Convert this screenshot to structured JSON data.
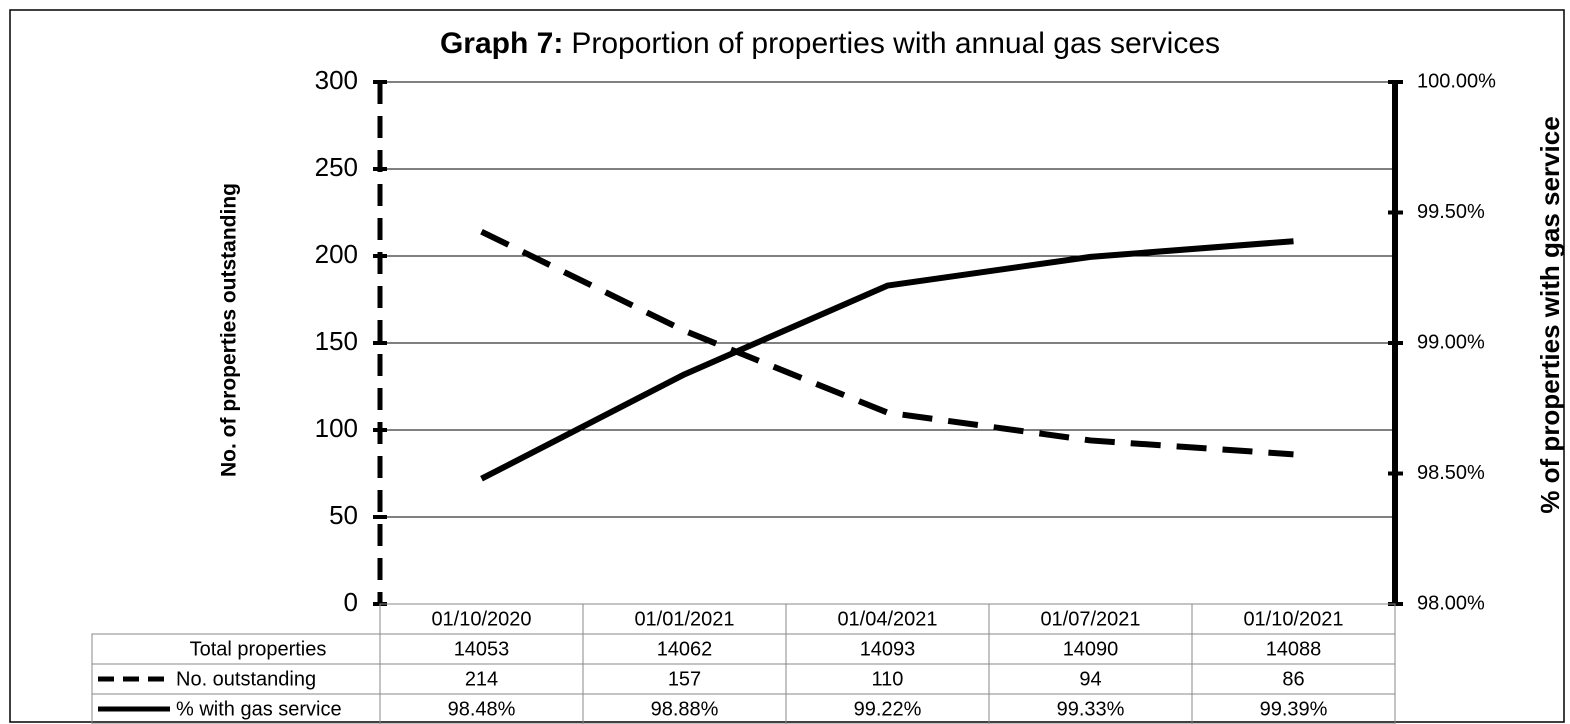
{
  "chart_data": {
    "type": "line",
    "title_label": "Graph 7:",
    "title": "Proportion of properties with annual gas services",
    "y_label": "No. of properties outstanding",
    "y2_label": "% of properties with gas service",
    "categories": [
      "01/10/2020",
      "01/01/2021",
      "01/04/2021",
      "01/07/2021",
      "01/10/2021"
    ],
    "total_properties": {
      "name": "Total properties",
      "values": [
        14053,
        14062,
        14093,
        14090,
        14088
      ]
    },
    "series": [
      {
        "name": "No. outstanding",
        "color": "#000000",
        "dash": true,
        "values": [
          214,
          157,
          110,
          94,
          86
        ]
      },
      {
        "name": "% with gas service",
        "color": "#000000",
        "dash": false,
        "axis": "y2",
        "values": [
          98.48,
          98.88,
          99.22,
          99.33,
          99.39
        ],
        "value_labels": [
          "98.48%",
          "98.88%",
          "99.22%",
          "99.33%",
          "99.39%"
        ]
      }
    ],
    "ylim": [
      0,
      300
    ],
    "yticks": [
      0,
      50,
      100,
      150,
      200,
      250,
      300
    ],
    "y2lim": [
      98,
      100
    ],
    "y2ticks": [
      {
        "value": 98,
        "label": "98.00%"
      },
      {
        "value": 98.5,
        "label": "98.50%"
      },
      {
        "value": 99,
        "label": "99.00%"
      },
      {
        "value": 99.5,
        "label": "99.50%"
      },
      {
        "value": 100,
        "label": "100.00%"
      }
    ],
    "grid": true
  }
}
